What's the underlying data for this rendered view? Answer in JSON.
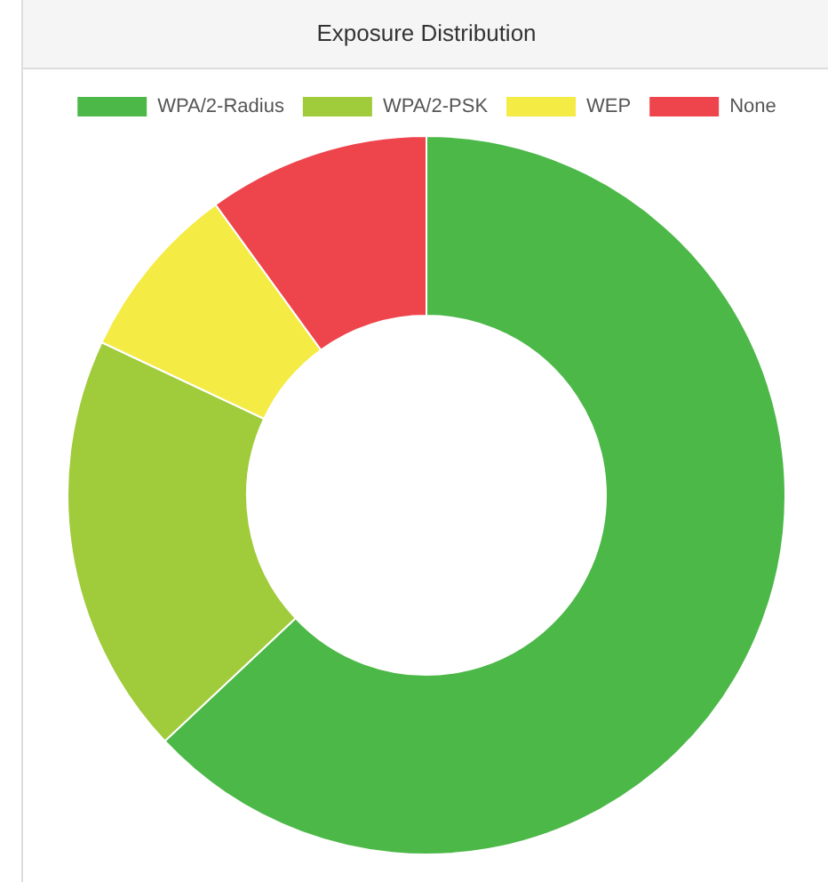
{
  "chart_data": {
    "type": "donut",
    "title": "Exposure Distribution",
    "categories": [
      "WPA/2-Radius",
      "WPA/2-PSK",
      "WEP",
      "None"
    ],
    "values": [
      63,
      19,
      8,
      10
    ],
    "colors": [
      "#4cb848",
      "#a0cb3a",
      "#f5eb45",
      "#ee444c"
    ],
    "legend": "top"
  }
}
